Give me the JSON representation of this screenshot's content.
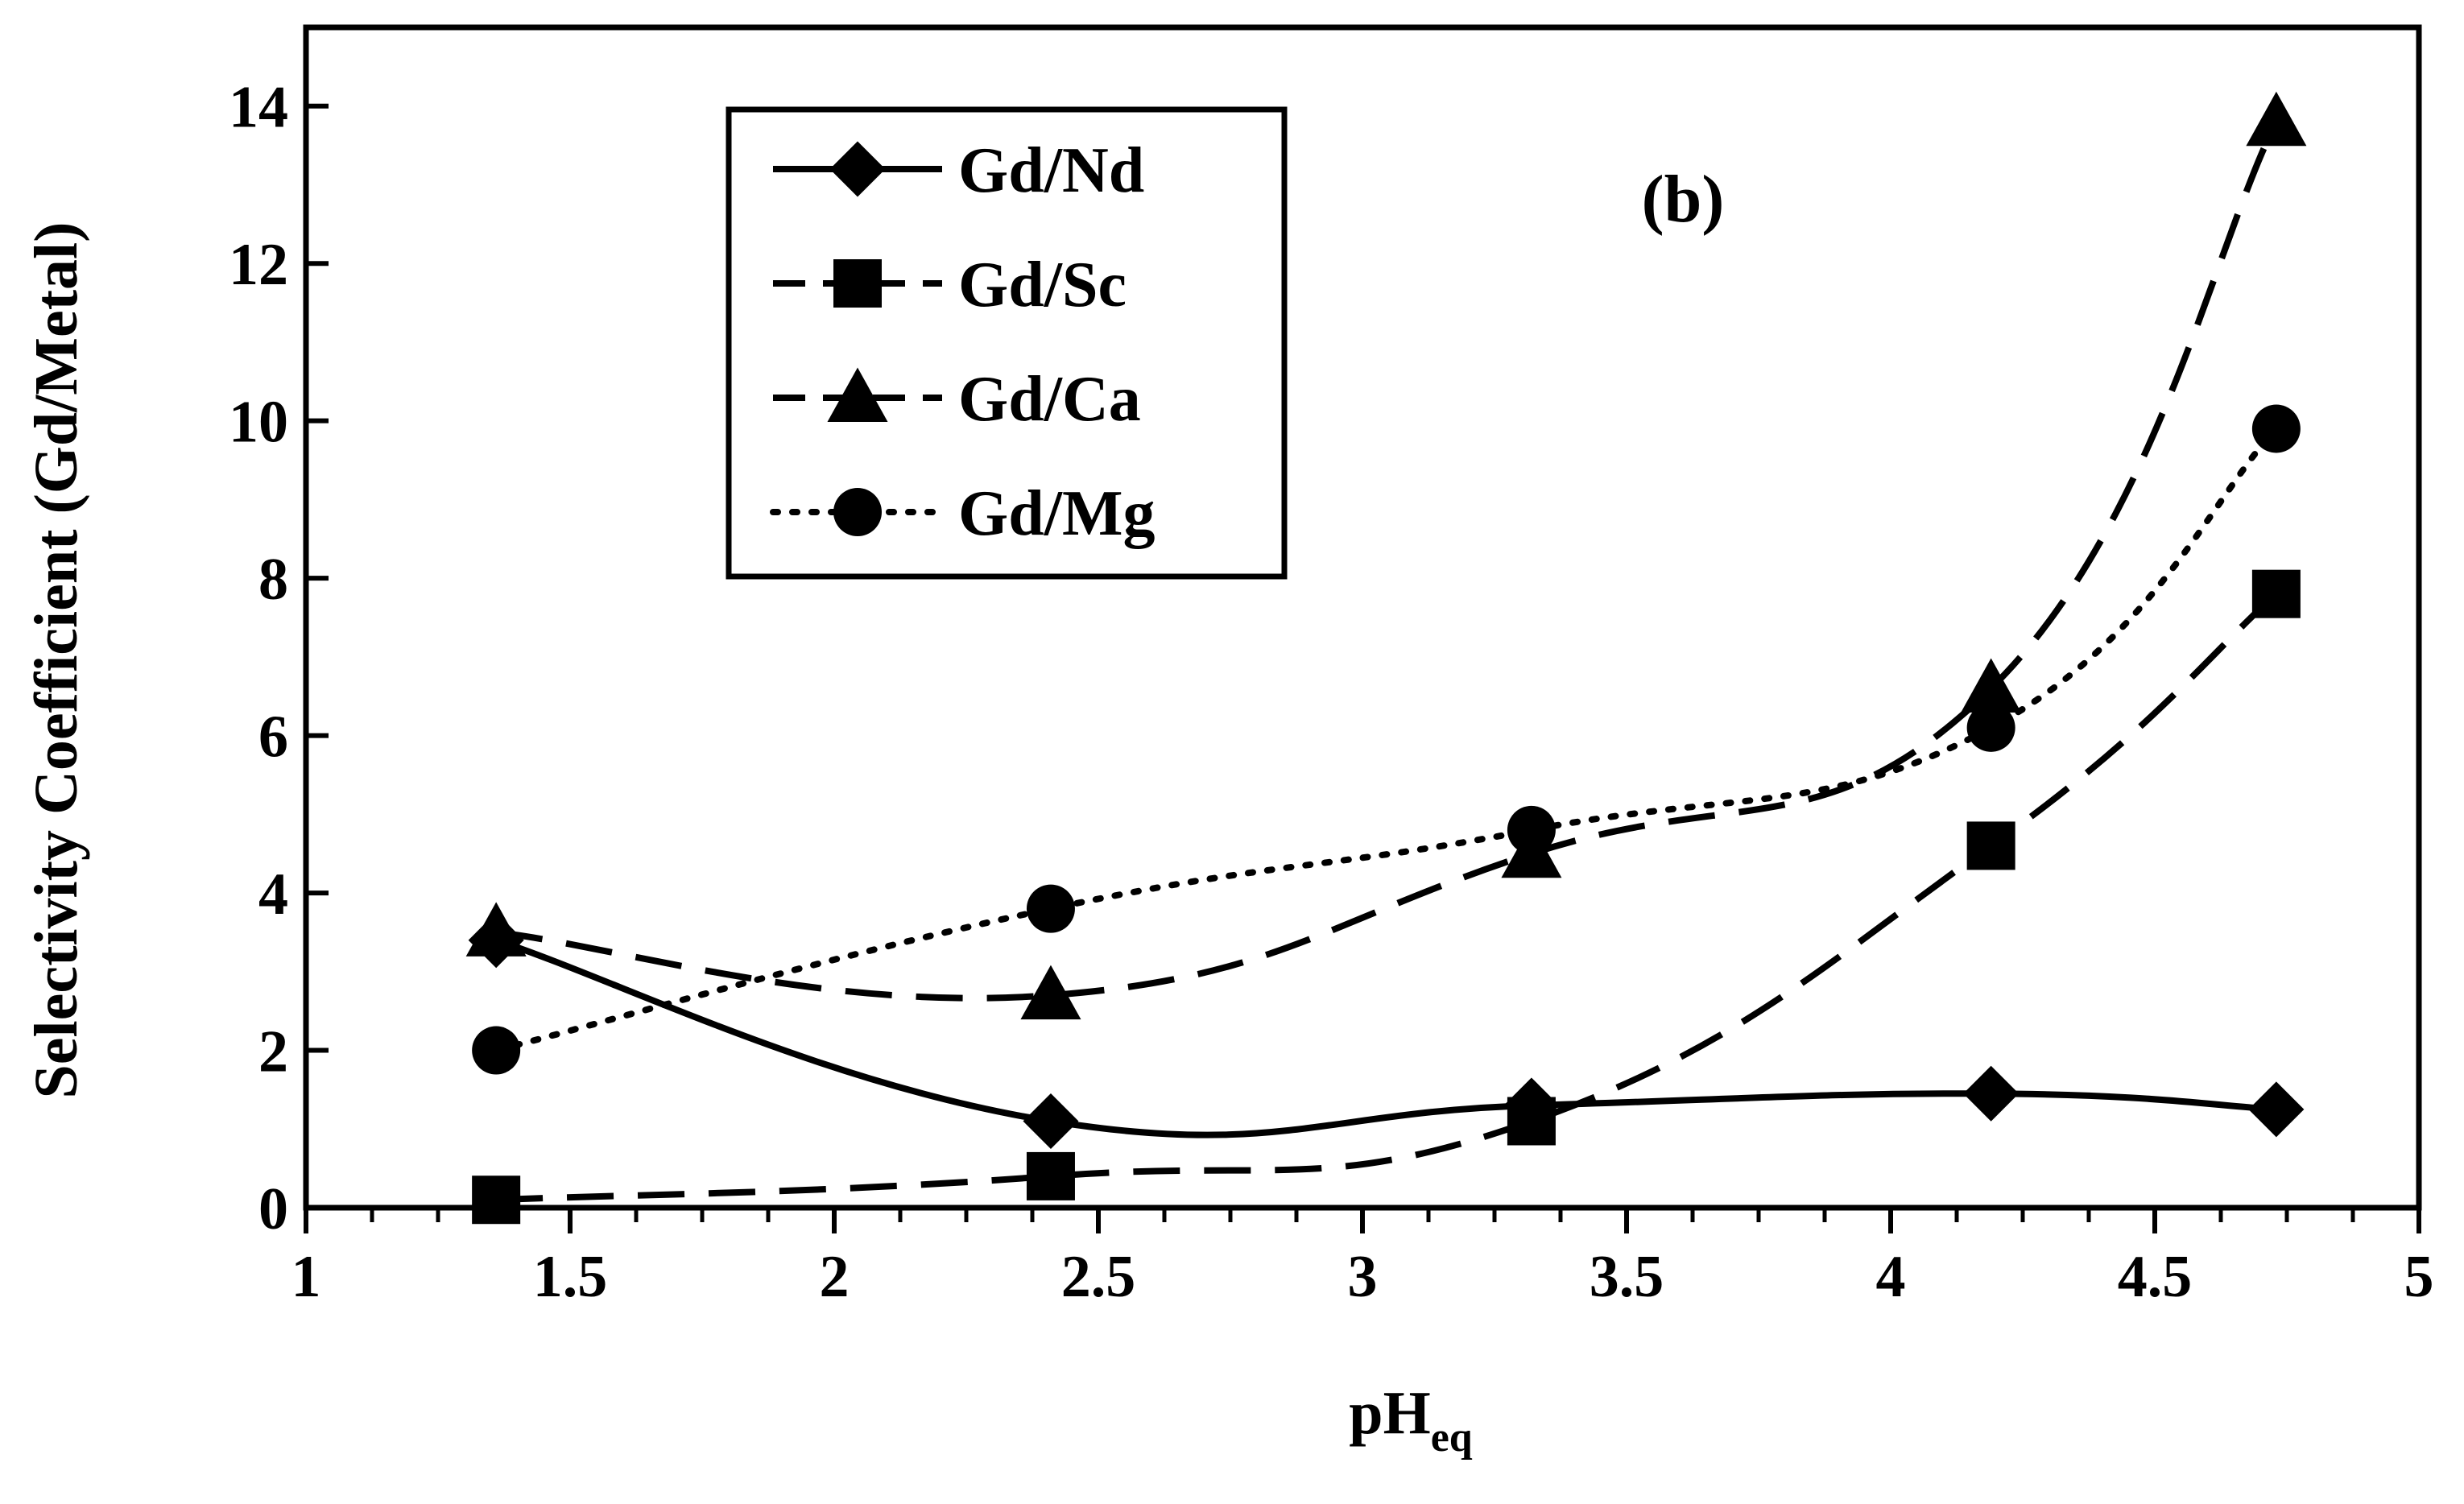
{
  "chart_data": {
    "type": "line",
    "panel_label": "(b)",
    "xlabel": "pH",
    "xlabel_subscript": "eq",
    "ylabel": "Selectivity Coefficient (Gd/Metal)",
    "xlim": [
      1,
      5
    ],
    "ylim": [
      0,
      15
    ],
    "x_ticks": [
      1,
      1.5,
      2,
      2.5,
      3,
      3.5,
      4,
      4.5,
      5
    ],
    "x_tick_labels": [
      "1",
      "1.5",
      "2",
      "2.5",
      "3",
      "3.5",
      "4",
      "4.5",
      "5"
    ],
    "y_ticks": [
      0,
      2,
      4,
      6,
      8,
      10,
      12,
      14
    ],
    "y_tick_labels": [
      "0",
      "2",
      "4",
      "6",
      "8",
      "10",
      "12",
      "14"
    ],
    "x": [
      1.36,
      2.41,
      3.32,
      4.19,
      4.73
    ],
    "legend_position": "top-left",
    "grid": false,
    "series": [
      {
        "name": "Gd/Nd",
        "marker": "diamond",
        "line": "solid",
        "values": [
          3.4,
          1.1,
          1.3,
          1.45,
          1.25
        ]
      },
      {
        "name": "Gd/Sc",
        "marker": "square",
        "line": "dashed",
        "values": [
          0.1,
          0.4,
          1.1,
          4.6,
          7.8
        ]
      },
      {
        "name": "Gd/Ca",
        "marker": "triangle",
        "line": "dashed",
        "values": [
          3.5,
          2.7,
          4.5,
          6.6,
          13.8
        ]
      },
      {
        "name": "Gd/Mg",
        "marker": "circle",
        "line": "dotted",
        "values": [
          2.0,
          3.8,
          4.8,
          6.1,
          9.9
        ]
      }
    ]
  }
}
